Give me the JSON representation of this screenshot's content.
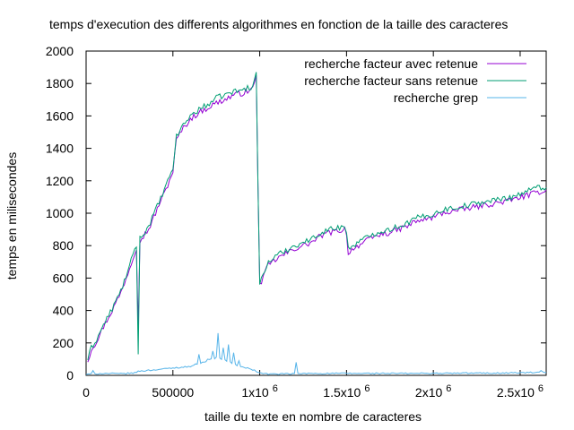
{
  "chart_data": {
    "type": "line",
    "title": "temps d'execution des differents algorithmes en fonction de la taille des caracteres",
    "xlabel": "taille du texte en nombre de caracteres",
    "ylabel": "temps en milisecondes",
    "xlim": [
      0,
      2650000
    ],
    "ylim": [
      0,
      2000
    ],
    "yticks": [
      0,
      200,
      400,
      600,
      800,
      1000,
      1200,
      1400,
      1600,
      1800,
      2000
    ],
    "xticks": [
      {
        "value": 0,
        "label": "0",
        "sup": ""
      },
      {
        "value": 500000,
        "label": "500000",
        "sup": ""
      },
      {
        "value": 1000000,
        "label": "1x10",
        "sup": "6"
      },
      {
        "value": 1500000,
        "label": "1.5x10",
        "sup": "6"
      },
      {
        "value": 2000000,
        "label": "2x10",
        "sup": "6"
      },
      {
        "value": 2500000,
        "label": "2.5x10",
        "sup": "6"
      }
    ],
    "legend_position": "top-right",
    "grid": false,
    "series": [
      {
        "name": "recherche facteur avec retenue",
        "color": "#9400d3",
        "anchors": [
          [
            10000,
            90
          ],
          [
            30000,
            160
          ],
          [
            60000,
            210
          ],
          [
            100000,
            300
          ],
          [
            150000,
            400
          ],
          [
            200000,
            510
          ],
          [
            250000,
            660
          ],
          [
            280000,
            760
          ],
          [
            300000,
            820
          ],
          [
            330000,
            860
          ],
          [
            360000,
            900
          ],
          [
            400000,
            1000
          ],
          [
            430000,
            1080
          ],
          [
            450000,
            1120
          ],
          [
            480000,
            1200
          ],
          [
            500000,
            1260
          ],
          [
            520000,
            1450
          ],
          [
            550000,
            1510
          ],
          [
            600000,
            1580
          ],
          [
            650000,
            1620
          ],
          [
            700000,
            1650
          ],
          [
            750000,
            1680
          ],
          [
            800000,
            1700
          ],
          [
            850000,
            1730
          ],
          [
            900000,
            1740
          ],
          [
            950000,
            1760
          ],
          [
            985000,
            1820
          ],
          [
            995000,
            570
          ],
          [
            1010000,
            580
          ],
          [
            1050000,
            680
          ],
          [
            1100000,
            720
          ],
          [
            1150000,
            750
          ],
          [
            1200000,
            780
          ],
          [
            1250000,
            800
          ],
          [
            1300000,
            820
          ],
          [
            1350000,
            860
          ],
          [
            1400000,
            880
          ],
          [
            1450000,
            890
          ],
          [
            1495000,
            905
          ],
          [
            1510000,
            760
          ],
          [
            1550000,
            790
          ],
          [
            1600000,
            820
          ],
          [
            1650000,
            850
          ],
          [
            1700000,
            870
          ],
          [
            1750000,
            880
          ],
          [
            1800000,
            900
          ],
          [
            1850000,
            920
          ],
          [
            1900000,
            950
          ],
          [
            1950000,
            960
          ],
          [
            2000000,
            975
          ],
          [
            2050000,
            1000
          ],
          [
            2100000,
            1010
          ],
          [
            2150000,
            1020
          ],
          [
            2200000,
            1030
          ],
          [
            2250000,
            1040
          ],
          [
            2300000,
            1050
          ],
          [
            2350000,
            1060
          ],
          [
            2400000,
            1070
          ],
          [
            2450000,
            1080
          ],
          [
            2500000,
            1100
          ],
          [
            2550000,
            1110
          ],
          [
            2600000,
            1130
          ],
          [
            2650000,
            1140
          ]
        ],
        "spikes": [
          [
            300000,
            300
          ],
          [
            980000,
            1850
          ],
          [
            1000000,
            570
          ]
        ]
      },
      {
        "name": "recherche facteur sans retenue",
        "color": "#009e73",
        "anchors": [
          [
            10000,
            100
          ],
          [
            30000,
            170
          ],
          [
            60000,
            220
          ],
          [
            100000,
            310
          ],
          [
            150000,
            410
          ],
          [
            200000,
            520
          ],
          [
            250000,
            670
          ],
          [
            280000,
            780
          ],
          [
            300000,
            830
          ],
          [
            330000,
            870
          ],
          [
            360000,
            920
          ],
          [
            400000,
            1020
          ],
          [
            430000,
            1090
          ],
          [
            450000,
            1140
          ],
          [
            480000,
            1220
          ],
          [
            500000,
            1280
          ],
          [
            520000,
            1470
          ],
          [
            550000,
            1530
          ],
          [
            600000,
            1600
          ],
          [
            650000,
            1640
          ],
          [
            700000,
            1670
          ],
          [
            750000,
            1710
          ],
          [
            800000,
            1730
          ],
          [
            850000,
            1750
          ],
          [
            900000,
            1760
          ],
          [
            950000,
            1780
          ],
          [
            985000,
            1840
          ],
          [
            995000,
            560
          ],
          [
            1010000,
            590
          ],
          [
            1050000,
            700
          ],
          [
            1100000,
            740
          ],
          [
            1150000,
            770
          ],
          [
            1200000,
            800
          ],
          [
            1250000,
            820
          ],
          [
            1300000,
            840
          ],
          [
            1350000,
            880
          ],
          [
            1400000,
            900
          ],
          [
            1450000,
            910
          ],
          [
            1495000,
            925
          ],
          [
            1510000,
            780
          ],
          [
            1550000,
            810
          ],
          [
            1600000,
            840
          ],
          [
            1650000,
            870
          ],
          [
            1700000,
            890
          ],
          [
            1750000,
            900
          ],
          [
            1800000,
            920
          ],
          [
            1850000,
            940
          ],
          [
            1900000,
            970
          ],
          [
            1950000,
            980
          ],
          [
            2000000,
            995
          ],
          [
            2050000,
            1020
          ],
          [
            2100000,
            1030
          ],
          [
            2150000,
            1040
          ],
          [
            2200000,
            1050
          ],
          [
            2250000,
            1060
          ],
          [
            2300000,
            1070
          ],
          [
            2350000,
            1080
          ],
          [
            2400000,
            1090
          ],
          [
            2450000,
            1100
          ],
          [
            2500000,
            1120
          ],
          [
            2550000,
            1140
          ],
          [
            2600000,
            1160
          ],
          [
            2650000,
            1160
          ]
        ],
        "spikes": [
          [
            300000,
            130
          ],
          [
            980000,
            1870
          ],
          [
            1000000,
            560
          ]
        ]
      },
      {
        "name": "recherche grep",
        "color": "#56b4e9",
        "anchors": [
          [
            0,
            5
          ],
          [
            50000,
            10
          ],
          [
            100000,
            12
          ],
          [
            200000,
            10
          ],
          [
            280000,
            15
          ],
          [
            300000,
            25
          ],
          [
            350000,
            30
          ],
          [
            400000,
            35
          ],
          [
            450000,
            40
          ],
          [
            500000,
            45
          ],
          [
            550000,
            50
          ],
          [
            600000,
            55
          ],
          [
            650000,
            75
          ],
          [
            700000,
            90
          ],
          [
            750000,
            110
          ],
          [
            800000,
            95
          ],
          [
            850000,
            70
          ],
          [
            900000,
            50
          ],
          [
            950000,
            40
          ],
          [
            1000000,
            15
          ],
          [
            1050000,
            8
          ],
          [
            1100000,
            8
          ],
          [
            1200000,
            10
          ],
          [
            1300000,
            12
          ],
          [
            1400000,
            12
          ],
          [
            1500000,
            12
          ],
          [
            1600000,
            12
          ],
          [
            1700000,
            12
          ],
          [
            1800000,
            12
          ],
          [
            1900000,
            12
          ],
          [
            2000000,
            13
          ],
          [
            2100000,
            13
          ],
          [
            2200000,
            14
          ],
          [
            2300000,
            14
          ],
          [
            2400000,
            15
          ],
          [
            2500000,
            16
          ],
          [
            2600000,
            18
          ],
          [
            2650000,
            18
          ]
        ],
        "spikes": [
          [
            40000,
            30
          ],
          [
            650000,
            130
          ],
          [
            700000,
            100
          ],
          [
            730000,
            150
          ],
          [
            760000,
            260
          ],
          [
            790000,
            170
          ],
          [
            820000,
            190
          ],
          [
            850000,
            140
          ],
          [
            880000,
            90
          ],
          [
            1210000,
            80
          ],
          [
            2620000,
            30
          ]
        ]
      }
    ]
  }
}
